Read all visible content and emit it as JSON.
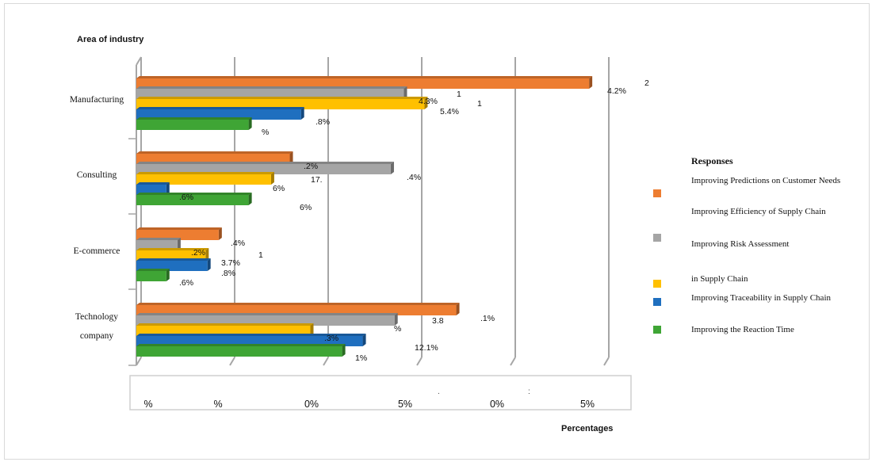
{
  "chart_data": {
    "type": "bar",
    "orientation": "horizontal",
    "title": "",
    "ylabel": "Area of industry",
    "xlabel": "Percentages",
    "categories": [
      "Manufacturing",
      "Consulting",
      "E-commerce",
      "Technology company"
    ],
    "category_label_lines": [
      [
        "Manufacturing"
      ],
      [
        "Consulting"
      ],
      [
        "E-commerce"
      ],
      [
        "Technology",
        "company"
      ]
    ],
    "xlim": [
      0,
      25
    ],
    "x_tick_values": [
      0,
      5,
      10,
      15,
      20,
      25
    ],
    "x_tick_labels": [
      "%",
      "%",
      "0%",
      "5%",
      "0%",
      "5%"
    ],
    "x_tick_marks": [
      "",
      "",
      "",
      "",
      ".",
      ":"
    ],
    "series": [
      {
        "name": "Improving Predictions on Customer Needs",
        "color": "#ED7D31",
        "values": [
          24.2,
          8.2,
          4.4,
          17.1
        ]
      },
      {
        "name": "Improving Risk Assessment",
        "color": "#A5A5A5",
        "values": [
          14.3,
          13.6,
          2.2,
          13.8
        ]
      },
      {
        "name": "in Supply Chain",
        "color": "#FFC000",
        "values": [
          15.4,
          7.2,
          3.7,
          9.3
        ]
      },
      {
        "name": "Improving Traceability in Supply Chain",
        "color": "#1F6FBF",
        "values": [
          8.8,
          1.6,
          3.8,
          12.1
        ]
      },
      {
        "name": "Improving the Reaction Time",
        "color": "#3FA535",
        "values": [
          6.0,
          6.0,
          1.6,
          11.0
        ]
      }
    ],
    "data_labels": [
      {
        "text": "2",
        "cat": 0,
        "pos": 0.0
      },
      {
        "text": "4.2%",
        "cat": 0,
        "pos": 0.6
      },
      {
        "text": "1",
        "cat": 0,
        "pos": 1.5
      },
      {
        "text": "1",
        "cat": 0,
        "pos": 2.2
      },
      {
        "text": "4.3%",
        "cat": 0,
        "pos": 2.1
      },
      {
        "text": "5.4%",
        "cat": 0,
        "pos": 3.0
      },
      {
        "text": ".8%",
        "cat": 0,
        "pos": 3.9
      },
      {
        "text": "%",
        "cat": 0,
        "pos": 4.9
      },
      {
        "text": ".2%",
        "cat": 1,
        "pos": 1.2
      },
      {
        "text": "17.",
        "cat": 1,
        "pos": 2.4
      },
      {
        "text": ".4%",
        "cat": 1,
        "pos": 2.1
      },
      {
        "text": "6%",
        "cat": 1,
        "pos": 3.3
      },
      {
        "text": ".6%",
        "cat": 1,
        "pos": 4.2
      },
      {
        "text": "6%",
        "cat": 1,
        "pos": 5.3
      },
      {
        "text": ".4%",
        "cat": 2,
        "pos": 1.0
      },
      {
        "text": ".2%",
        "cat": 2,
        "pos": 2.1
      },
      {
        "text": "1",
        "cat": 2,
        "pos": 2.1
      },
      {
        "text": "3.7%",
        "cat": 2,
        "pos": 3.0
      },
      {
        "text": ".8%",
        "cat": 2,
        "pos": 3.9
      },
      {
        "text": ".6%",
        "cat": 2,
        "pos": 4.9
      },
      {
        "text": ".1%",
        "cat": 3,
        "pos": 1.3
      },
      {
        "text": "3.8",
        "cat": 3,
        "pos": 1.4
      },
      {
        "text": "%",
        "cat": 3,
        "pos": 2.3
      },
      {
        "text": ".3%",
        "cat": 3,
        "pos": 3.2
      },
      {
        "text": "12.1%",
        "cat": 3,
        "pos": 4.1
      },
      {
        "text": "1%",
        "cat": 3,
        "pos": 5.2
      }
    ],
    "legend": {
      "title": "Responses",
      "position": "right",
      "entries": [
        {
          "text": "Improving Predictions on Customer Needs",
          "swatch": "#ED7D31"
        },
        {
          "text": "Improving Efficiency of Supply Chain",
          "swatch": ""
        },
        {
          "text": "Improving Risk Assessment",
          "swatch": "#A5A5A5"
        },
        {
          "text": "in Supply Chain",
          "swatch": "#FFC000"
        },
        {
          "text": "Improving Traceability in Supply Chain",
          "swatch": "#1F6FBF"
        },
        {
          "text": "Improving the Reaction Time",
          "swatch": "#3FA535"
        }
      ]
    }
  }
}
